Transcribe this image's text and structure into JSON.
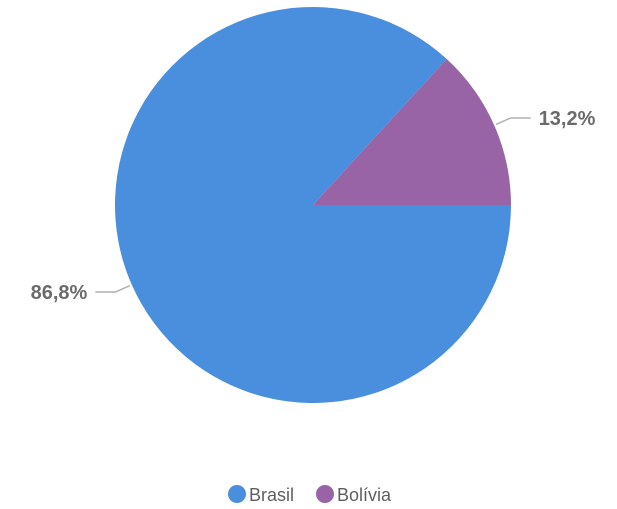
{
  "chart_data": {
    "type": "pie",
    "categories": [
      "Brasil",
      "Bolívia"
    ],
    "values": [
      86.8,
      13.2
    ],
    "value_labels": [
      "86,8%",
      "13,2%"
    ],
    "colors": [
      "#4a8fdd",
      "#9864a6"
    ],
    "title": "",
    "legend_position": "bottom-center",
    "legend": [
      "Brasil",
      "Bolívia"
    ]
  }
}
